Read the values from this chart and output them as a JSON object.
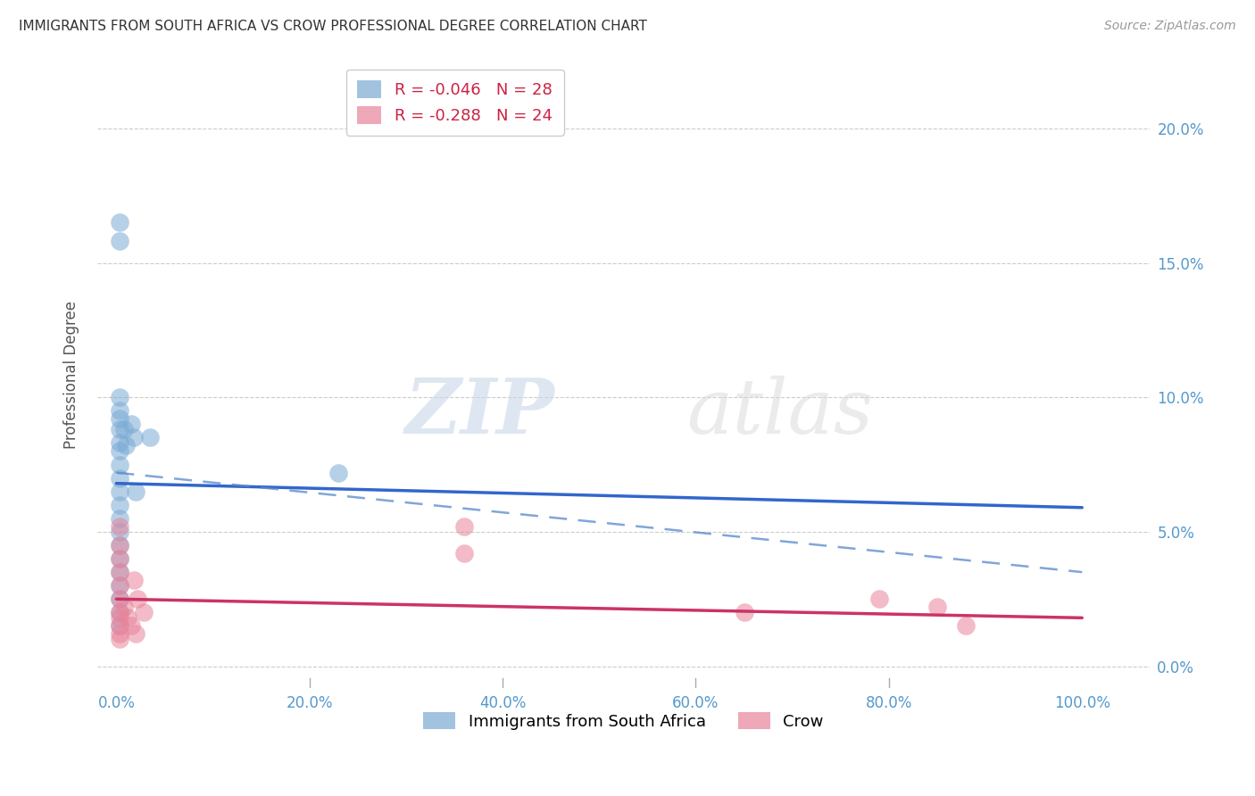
{
  "title": "IMMIGRANTS FROM SOUTH AFRICA VS CROW PROFESSIONAL DEGREE CORRELATION CHART",
  "source": "Source: ZipAtlas.com",
  "xlabel_vals": [
    0,
    20,
    40,
    60,
    80,
    100
  ],
  "ylabel": "Professional Degree",
  "ylabel_vals": [
    0,
    5,
    10,
    15,
    20
  ],
  "xlim": [
    -2,
    107
  ],
  "ylim": [
    -0.8,
    22.5
  ],
  "legend_label1": "R = -0.046   N = 28",
  "legend_label2": "R = -0.288   N = 24",
  "legend_entry1": "Immigrants from South Africa",
  "legend_entry2": "Crow",
  "blue_color": "#7aaad4",
  "pink_color": "#e8849a",
  "blue_scatter": [
    [
      0.3,
      15.8
    ],
    [
      0.3,
      16.5
    ],
    [
      0.3,
      10.0
    ],
    [
      0.3,
      9.5
    ],
    [
      0.3,
      9.2
    ],
    [
      0.3,
      8.8
    ],
    [
      0.3,
      8.3
    ],
    [
      0.3,
      8.0
    ],
    [
      0.3,
      7.5
    ],
    [
      0.3,
      7.0
    ],
    [
      0.3,
      6.5
    ],
    [
      0.3,
      6.0
    ],
    [
      0.3,
      5.5
    ],
    [
      0.8,
      8.8
    ],
    [
      1.0,
      8.2
    ],
    [
      1.5,
      9.0
    ],
    [
      1.8,
      8.5
    ],
    [
      3.5,
      8.5
    ],
    [
      2.0,
      6.5
    ],
    [
      0.3,
      5.0
    ],
    [
      0.3,
      4.5
    ],
    [
      0.3,
      4.0
    ],
    [
      0.3,
      3.5
    ],
    [
      0.3,
      3.0
    ],
    [
      0.3,
      2.5
    ],
    [
      0.3,
      2.0
    ],
    [
      0.3,
      1.5
    ],
    [
      23.0,
      7.2
    ]
  ],
  "pink_scatter": [
    [
      0.3,
      5.2
    ],
    [
      0.3,
      4.5
    ],
    [
      0.3,
      4.0
    ],
    [
      0.3,
      3.5
    ],
    [
      0.3,
      3.0
    ],
    [
      0.3,
      2.5
    ],
    [
      0.3,
      2.0
    ],
    [
      0.3,
      1.8
    ],
    [
      0.3,
      1.5
    ],
    [
      0.3,
      1.2
    ],
    [
      0.3,
      1.0
    ],
    [
      0.8,
      2.2
    ],
    [
      1.2,
      1.8
    ],
    [
      1.8,
      3.2
    ],
    [
      2.2,
      2.5
    ],
    [
      2.8,
      2.0
    ],
    [
      1.5,
      1.5
    ],
    [
      2.0,
      1.2
    ],
    [
      36.0,
      5.2
    ],
    [
      36.0,
      4.2
    ],
    [
      65.0,
      2.0
    ],
    [
      79.0,
      2.5
    ],
    [
      85.0,
      2.2
    ],
    [
      88.0,
      1.5
    ]
  ],
  "blue_solid_line": [
    [
      0,
      6.8
    ],
    [
      100,
      5.9
    ]
  ],
  "blue_dashed_line": [
    [
      0,
      7.2
    ],
    [
      100,
      3.5
    ]
  ],
  "pink_solid_line": [
    [
      0,
      2.5
    ],
    [
      100,
      1.8
    ]
  ],
  "grid_color": "#cccccc",
  "watermark_zip": "ZIP",
  "watermark_atlas": "atlas",
  "background_color": "#ffffff",
  "tick_label_color": "#5599cc",
  "right_ytick_color": "#5599cc",
  "title_color": "#333333",
  "source_color": "#999999",
  "ylabel_color": "#555555"
}
